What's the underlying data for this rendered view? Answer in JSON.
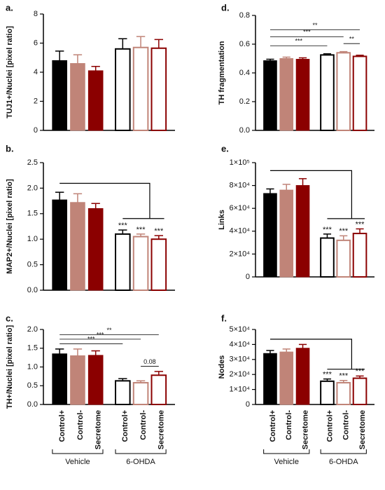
{
  "chart_data": [
    {
      "type": "bar",
      "label": "a.",
      "ylabel": "TUJ1+/Nuclei [pixel ratio]",
      "values": [
        4.8,
        4.6,
        4.1,
        5.6,
        5.7,
        5.65
      ],
      "errors": [
        0.65,
        0.6,
        0.3,
        0.7,
        0.75,
        0.6
      ],
      "colors": [
        "#000000",
        "#c08478",
        "#8b0000",
        "#000000",
        "#c08478",
        "#8b0000"
      ],
      "fills": [
        "#000000",
        "#c08478",
        "#8b0000",
        "#ffffff",
        "#ffffff",
        "#ffffff"
      ],
      "ylim": [
        0,
        8
      ],
      "yticks": [
        0,
        2,
        4,
        6,
        8
      ]
    },
    {
      "type": "bar",
      "label": "d.",
      "ylabel": "TH fragmentation",
      "values": [
        0.485,
        0.5,
        0.495,
        0.525,
        0.54,
        0.515
      ],
      "errors": [
        0.01,
        0.01,
        0.01,
        0.008,
        0.008,
        0.008
      ],
      "colors": [
        "#000000",
        "#c08478",
        "#8b0000",
        "#000000",
        "#c08478",
        "#8b0000"
      ],
      "fills": [
        "#000000",
        "#c08478",
        "#8b0000",
        "#ffffff",
        "#ffffff",
        "#ffffff"
      ],
      "ylim": [
        0,
        0.8
      ],
      "yticks": [
        {
          "value": 0,
          "label": "0.0"
        },
        0.2,
        0.4,
        0.6,
        0.8
      ],
      "comparisons": [
        {
          "from": 4,
          "to": 5,
          "label": "**"
        },
        {
          "from": 0,
          "to": 3,
          "label": "***"
        },
        {
          "from": 0,
          "to": 4,
          "label": "***"
        },
        {
          "from": 0,
          "to": 5,
          "label": "**"
        }
      ]
    },
    {
      "type": "bar",
      "label": "b.",
      "ylabel": "MAP2+/Nuclei [pixel ratio]",
      "values": [
        1.77,
        1.72,
        1.6,
        1.1,
        1.05,
        1.0
      ],
      "errors": [
        0.15,
        0.17,
        0.1,
        0.08,
        0.05,
        0.07
      ],
      "colors": [
        "#000000",
        "#c08478",
        "#8b0000",
        "#000000",
        "#c08478",
        "#8b0000"
      ],
      "fills": [
        "#000000",
        "#c08478",
        "#8b0000",
        "#ffffff",
        "#ffffff",
        "#ffffff"
      ],
      "bar_labels": [
        null,
        null,
        null,
        "***",
        "***",
        "***"
      ],
      "group_bracket": true,
      "ylim": [
        0,
        2.5
      ],
      "yticks": [
        {
          "value": 0,
          "label": "0.0"
        },
        0.5,
        {
          "value": 1,
          "label": "1.0"
        },
        1.5,
        {
          "value": 2,
          "label": "2.0"
        },
        2.5
      ]
    },
    {
      "type": "bar",
      "label": "e.",
      "ylabel": "Links",
      "values": [
        73000,
        76000,
        80000,
        34000,
        32000,
        38000
      ],
      "errors": [
        4000,
        5000,
        6000,
        3500,
        4000,
        4000
      ],
      "colors": [
        "#000000",
        "#c08478",
        "#8b0000",
        "#000000",
        "#c08478",
        "#8b0000"
      ],
      "fills": [
        "#000000",
        "#c08478",
        "#8b0000",
        "#ffffff",
        "#ffffff",
        "#ffffff"
      ],
      "bar_labels": [
        null,
        null,
        null,
        "***",
        "***",
        "***"
      ],
      "group_bracket": true,
      "ylim": [
        0,
        100000
      ],
      "yticks": [
        0,
        {
          "value": 20000,
          "label": "2×10⁴"
        },
        {
          "value": 40000,
          "label": "4×10⁴"
        },
        {
          "value": 60000,
          "label": "6×10⁴"
        },
        {
          "value": 80000,
          "label": "8×10⁴"
        },
        {
          "value": 100000,
          "label": "1×10⁵"
        }
      ]
    },
    {
      "type": "bar",
      "label": "c.",
      "ylabel": "TH+/Nuclei [pixel ratio]",
      "categories": [
        "Control+",
        "Control-",
        "Secretome",
        "Control+",
        "Control-",
        "Secretome"
      ],
      "groups": [
        {
          "name": "Vehicle",
          "from": 0,
          "to": 2
        },
        {
          "name": "6-OHDA",
          "from": 3,
          "to": 5
        }
      ],
      "values": [
        1.35,
        1.3,
        1.31,
        0.63,
        0.58,
        0.78
      ],
      "errors": [
        0.13,
        0.18,
        0.12,
        0.06,
        0.05,
        0.1
      ],
      "colors": [
        "#000000",
        "#c08478",
        "#8b0000",
        "#000000",
        "#c08478",
        "#8b0000"
      ],
      "fills": [
        "#000000",
        "#c08478",
        "#8b0000",
        "#ffffff",
        "#ffffff",
        "#ffffff"
      ],
      "ylim": [
        0,
        2
      ],
      "yticks": [
        {
          "value": 0,
          "label": "0.0"
        },
        0.5,
        {
          "value": 1,
          "label": "1.0"
        },
        1.5,
        {
          "value": 2,
          "label": "2.0"
        }
      ],
      "comparisons": [
        {
          "from": 4,
          "to": 5,
          "label": "0.08"
        },
        {
          "from": 0,
          "to": 3,
          "label": "***"
        },
        {
          "from": 0,
          "to": 4,
          "label": "***"
        },
        {
          "from": 0,
          "to": 5,
          "label": "**"
        }
      ]
    },
    {
      "type": "bar",
      "label": "f.",
      "ylabel": "Nodes",
      "categories": [
        "Control+",
        "Control-",
        "Secretome",
        "Control+",
        "Control-",
        "Secretome"
      ],
      "groups": [
        {
          "name": "Vehicle",
          "from": 0,
          "to": 2
        },
        {
          "name": "6-OHDA",
          "from": 3,
          "to": 5
        }
      ],
      "values": [
        34000,
        35000,
        37500,
        15500,
        14500,
        17500
      ],
      "errors": [
        2000,
        2000,
        2500,
        1500,
        1500,
        1500
      ],
      "colors": [
        "#000000",
        "#c08478",
        "#8b0000",
        "#000000",
        "#c08478",
        "#8b0000"
      ],
      "fills": [
        "#000000",
        "#c08478",
        "#8b0000",
        "#ffffff",
        "#ffffff",
        "#ffffff"
      ],
      "bar_labels": [
        null,
        null,
        null,
        "***",
        "***",
        "***"
      ],
      "group_bracket": true,
      "ylim": [
        0,
        50000
      ],
      "yticks": [
        0,
        {
          "value": 10000,
          "label": "1×10⁴"
        },
        {
          "value": 20000,
          "label": "2×10⁴"
        },
        {
          "value": 30000,
          "label": "3×10⁴"
        },
        {
          "value": 40000,
          "label": "4×10⁴"
        },
        {
          "value": 50000,
          "label": "5×10⁴"
        }
      ]
    }
  ]
}
